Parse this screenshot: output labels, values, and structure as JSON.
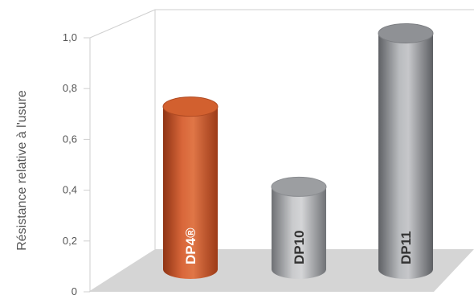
{
  "chart_data": {
    "type": "bar",
    "style": "3d-cylinder",
    "ylabel": "Résistance relative à l'usure",
    "ylim": [
      0,
      1.0
    ],
    "yticks": [
      "0",
      "0,2",
      "0,4",
      "0,6",
      "0,8",
      "1,0"
    ],
    "categories": [
      "DP4®",
      "DP10",
      "DP11"
    ],
    "values": [
      0.71,
      0.36,
      1.03
    ],
    "colors": {
      "DP4®": "#c8552a",
      "DP10": "#a9abae",
      "DP11": "#a9abae"
    },
    "grid": false,
    "legend": "none"
  }
}
